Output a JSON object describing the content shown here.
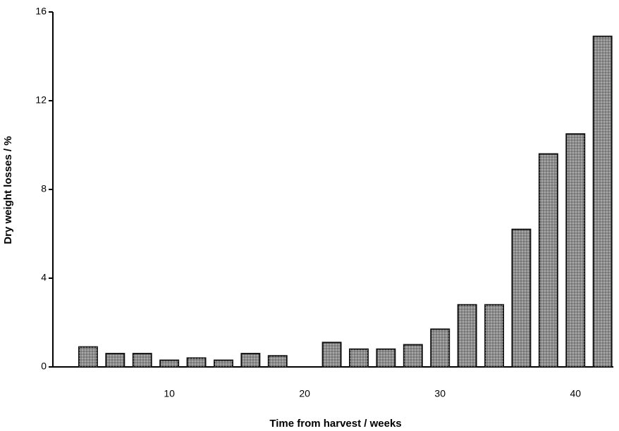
{
  "chart_data": {
    "type": "bar",
    "x_label": "Time from harvest / weeks",
    "y_label": "Dry weight losses / %",
    "x": [
      4,
      6,
      8,
      10,
      12,
      14,
      16,
      18,
      22,
      24,
      26,
      28,
      30,
      32,
      34,
      36,
      38,
      40,
      42
    ],
    "values": [
      0.9,
      0.6,
      0.6,
      0.3,
      0.4,
      0.3,
      0.6,
      0.5,
      1.1,
      0.8,
      0.8,
      1.0,
      1.7,
      2.8,
      2.8,
      6.2,
      9.6,
      10.5,
      14.9
    ],
    "color": "#8c8c8c",
    "xlim": [
      1.4,
      42.8
    ],
    "xticks": [
      10,
      20,
      30,
      40
    ],
    "ylim": [
      0,
      16
    ],
    "yticks": [
      0,
      4,
      8,
      12,
      16
    ],
    "grid": false
  }
}
